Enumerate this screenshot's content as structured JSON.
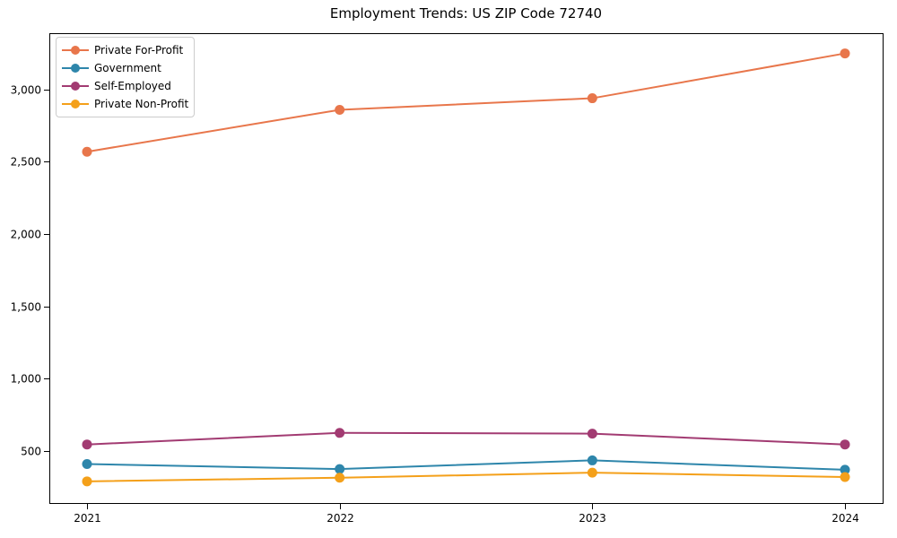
{
  "chart_data": {
    "type": "line",
    "title": "Employment Trends: US ZIP Code 72740",
    "categories": [
      "2021",
      "2022",
      "2023",
      "2024"
    ],
    "series": [
      {
        "name": "Private For-Profit",
        "color": "#E8764B",
        "values": [
          2570,
          2860,
          2940,
          3250
        ]
      },
      {
        "name": "Government",
        "color": "#2E86AB",
        "values": [
          410,
          375,
          435,
          370
        ]
      },
      {
        "name": "Self-Employed",
        "color": "#A23B72",
        "values": [
          545,
          625,
          620,
          545
        ]
      },
      {
        "name": "Private Non-Profit",
        "color": "#F4A01A",
        "values": [
          290,
          315,
          350,
          320
        ]
      }
    ],
    "yticks": [
      500,
      1000,
      1500,
      2000,
      2500,
      3000
    ],
    "ytick_labels": [
      "500",
      "1,000",
      "1,500",
      "2,000",
      "2,500",
      "3,000"
    ],
    "ylim": [
      140,
      3390
    ],
    "grid": false,
    "legend_position": "upper-left",
    "axis_color": "#000000",
    "background_color": "#ffffff",
    "xlabel": "",
    "ylabel": ""
  }
}
